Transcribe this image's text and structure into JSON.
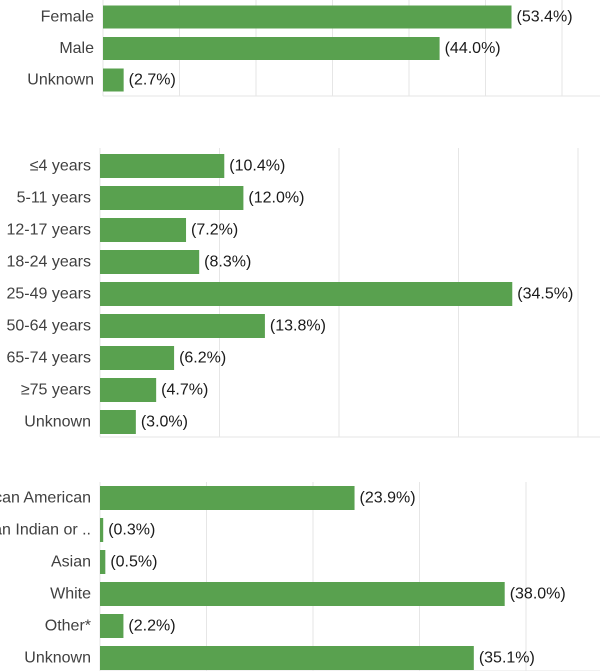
{
  "colors": {
    "bar": "#59a14f",
    "grid": "#e6e6e6",
    "label": "#404040",
    "value": "#1a1a1a"
  },
  "chart_data": [
    {
      "type": "bar",
      "orientation": "horizontal",
      "grid": true,
      "categories": [
        "Female",
        "Male",
        "Unknown"
      ],
      "values": [
        53.4,
        44.0,
        2.7
      ],
      "data_labels": [
        "(53.4%)",
        "(44.0%)",
        "(2.7%)"
      ],
      "xlim": [
        0,
        60
      ]
    },
    {
      "type": "bar",
      "orientation": "horizontal",
      "grid": true,
      "categories": [
        "≤4 years",
        "5-11 years",
        "12-17 years",
        "18-24 years",
        "25-49 years",
        "50-64 years",
        "65-74 years",
        "≥75 years",
        "Unknown"
      ],
      "values": [
        10.4,
        12.0,
        7.2,
        8.3,
        34.5,
        13.8,
        6.2,
        4.7,
        3.0
      ],
      "data_labels": [
        "(10.4%)",
        "(12.0%)",
        "(7.2%)",
        "(8.3%)",
        "(34.5%)",
        "(13.8%)",
        "(6.2%)",
        "(4.7%)",
        "(3.0%)"
      ],
      "xlim": [
        0,
        40
      ]
    },
    {
      "type": "bar",
      "orientation": "horizontal",
      "grid": true,
      "categories": [
        "Black or African American",
        "American Indian or ..",
        "Asian",
        "White",
        "Other*",
        "Unknown"
      ],
      "values": [
        23.9,
        0.3,
        0.5,
        38.0,
        2.2,
        35.1
      ],
      "data_labels": [
        "(23.9%)",
        "(0.3%)",
        "(0.5%)",
        "(38.0%)",
        "(2.2%)",
        "(35.1%)"
      ],
      "xlim": [
        0,
        50
      ]
    }
  ]
}
